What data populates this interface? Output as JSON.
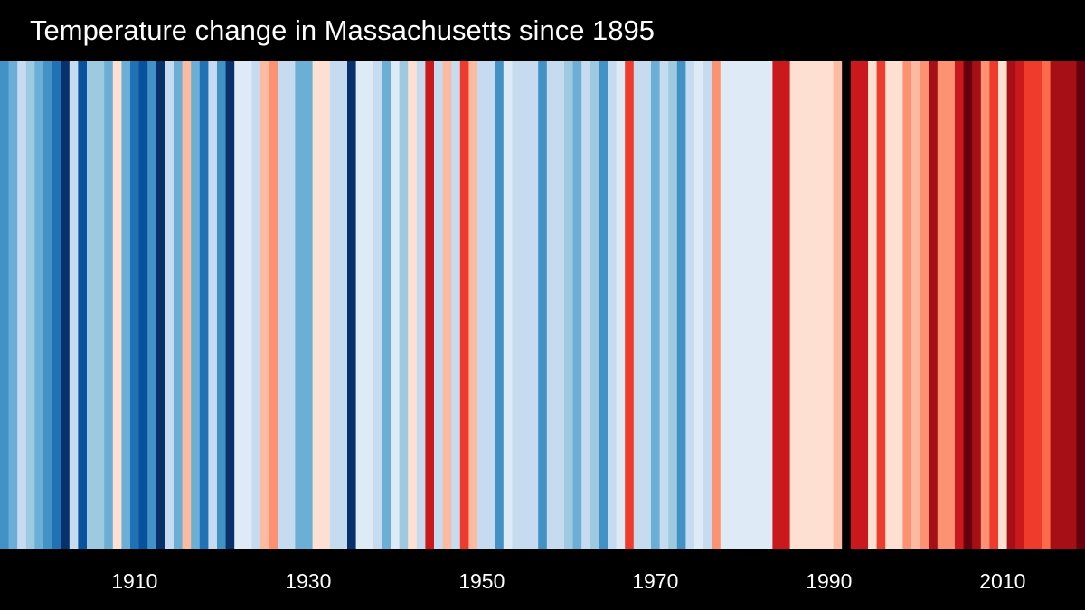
{
  "chart_data": {
    "type": "heatmap",
    "title": "Temperature change in Massachusetts since 1895",
    "x_start_year": 1895,
    "x_end_year": 2019,
    "tick_labels": [
      "1910",
      "1930",
      "1950",
      "1970",
      "1990",
      "2010"
    ],
    "colors_by_year": [
      "#4292c6",
      "#6baed6",
      "#c6dbef",
      "#9ecae1",
      "#6baed6",
      "#4292c6",
      "#2171b5",
      "#08306b",
      "#c6dbef",
      "#08519c",
      "#9ecae1",
      "#9ecae1",
      "#6baed6",
      "#fee0d2",
      "#6baed6",
      "#2171b5",
      "#08519c",
      "#4292c6",
      "#08306b",
      "#c6dbef",
      "#6baed6",
      "#fcbba1",
      "#6baed6",
      "#2171b5",
      "#c6dbef",
      "#4292c6",
      "#08306b",
      "#deebf7",
      "#deebf7",
      "#c6dbef",
      "#fcbba1",
      "#fc9272",
      "#c6dbef",
      "#c6dbef",
      "#6baed6",
      "#6baed6",
      "#fee0d2",
      "#fee0d2",
      "#c6dbef",
      "#c6dbef",
      "#08306b",
      "#deebf7",
      "#deebf7",
      "#c6dbef",
      "#6baed6",
      "#deebf7",
      "#9ecae1",
      "#fee0d2",
      "#c6dbef",
      "#cb181d",
      "#c6dbef",
      "#fcbba1",
      "#c6dbef",
      "#ef3b2c",
      "#fcbba1",
      "#c6dbef",
      "#c6dbef",
      "#4292c6",
      "#deebf7",
      "#c6dbef",
      "#c6dbef",
      "#c6dbef",
      "#4292c6",
      "#c6dbef",
      "#c6dbef",
      "#9ecae1",
      "#6baed6",
      "#c6dbef",
      "#9ecae1",
      "#4292c6",
      "#c6dbef",
      "#deebf7",
      "#ef3b2c",
      "#c6dbef",
      "#c6dbef",
      "#6baed6",
      "#c6dbef",
      "#9ecae1",
      "#4292c6",
      "#c6dbef",
      "#deebf7",
      "#c6dbef",
      "#fc9272",
      "#deebf7",
      "#deebf7",
      "#deebf7",
      "#deebf7",
      "#deebf7",
      "#deebf7",
      "#cb181d",
      "#cb181d",
      "#fee0d2",
      "#fee0d2",
      "#fee0d2",
      "#fee0d2",
      "#fee0d2",
      "#fcbba1",
      "#000000",
      "#cb181d",
      "#cb181d",
      "#fee0d2",
      "#ef3b2c",
      "#fee0d2",
      "#fee0d2",
      "#fc9272",
      "#fcbba1",
      "#fc9272",
      "#a50f15",
      "#fc9272",
      "#fc9272",
      "#cb181d",
      "#67000d",
      "#a50f15",
      "#fc9272",
      "#ef3b2c",
      "#fee0d2",
      "#a50f15",
      "#cb181d",
      "#ef3b2c",
      "#ef3b2c",
      "#fb6a4a",
      "#a50f15",
      "#a50f15",
      "#a50f15",
      "#67000d"
    ]
  }
}
